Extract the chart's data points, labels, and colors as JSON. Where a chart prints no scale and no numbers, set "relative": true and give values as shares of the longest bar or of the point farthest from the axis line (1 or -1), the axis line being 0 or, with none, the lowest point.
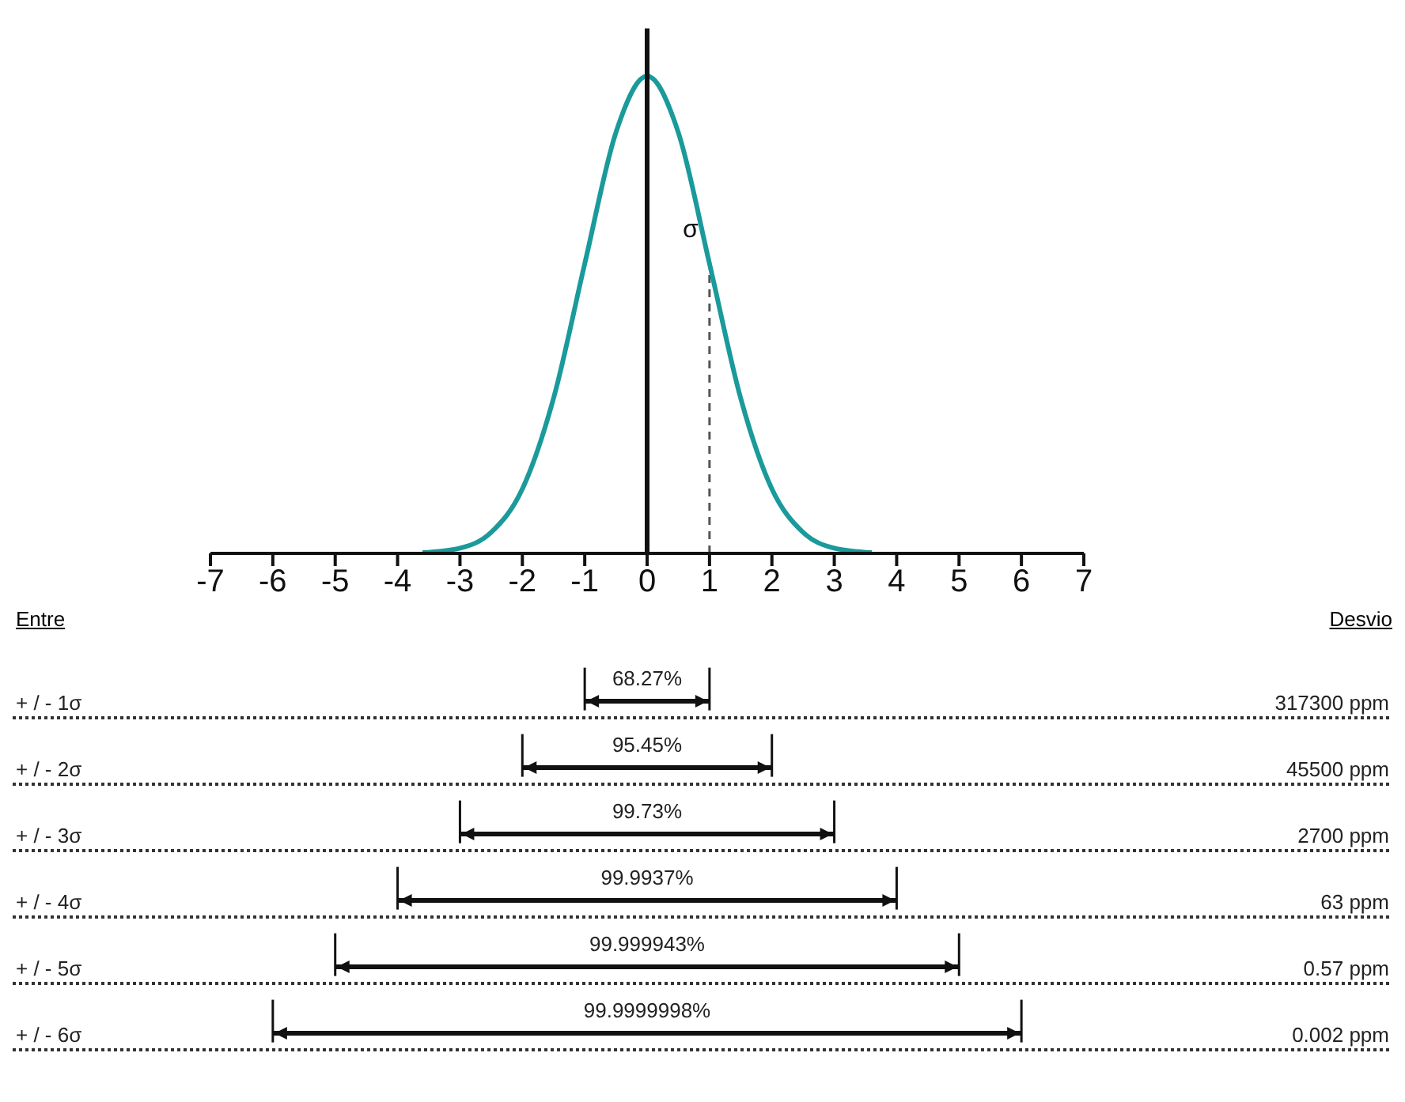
{
  "chart_data": [
    {
      "type": "line",
      "relative": true,
      "x": [
        -3.6,
        -3,
        -2.5,
        -2,
        -1.5,
        -1,
        -0.5,
        0,
        0.5,
        1,
        1.5,
        2,
        2.5,
        3,
        3.6
      ],
      "series": [
        {
          "color": "#1a9a9a",
          "values": [
            0.0015,
            0.011,
            0.044,
            0.135,
            0.325,
            0.607,
            0.882,
            1,
            0.882,
            0.607,
            0.325,
            0.135,
            0.044,
            0.011,
            0.0015
          ]
        }
      ],
      "xlim": [
        -7,
        7
      ],
      "xticks": [
        -7,
        -6,
        -5,
        -4,
        -3,
        -2,
        -1,
        0,
        1,
        2,
        3,
        4,
        5,
        6,
        7
      ],
      "marker": "none",
      "ref_lines": [
        {
          "axis": "x",
          "value": 1,
          "label": "σ",
          "line_style": "dashed"
        }
      ]
    },
    {
      "type": "bar",
      "orientation": "horizontal",
      "categories": [
        "+ / - 1σ",
        "+ / - 2σ",
        "+ / - 3σ",
        "+ / - 4σ",
        "+ / - 5σ",
        "+ / - 6σ"
      ],
      "base": [
        -1,
        -2,
        -3,
        -4,
        -5,
        -6
      ],
      "values": [
        2,
        4,
        6,
        8,
        10,
        12
      ],
      "color": "#111111",
      "xlim": [
        -7,
        7
      ],
      "tick_labels": "y",
      "annotations": [
        "Entre",
        "Desvio",
        "317300 ppm",
        "45500 ppm",
        "2700 ppm",
        "63 ppm",
        "0.57 ppm",
        "0.002 ppm",
        {
          "text": "68.27%",
          "y": "+ / - 1σ"
        },
        {
          "text": "95.45%",
          "y": "+ / - 2σ"
        },
        {
          "text": "99.73%",
          "y": "+ / - 3σ"
        },
        {
          "text": "99.9937%",
          "y": "+ / - 4σ"
        },
        {
          "text": "99.999943%",
          "y": "+ / - 5σ"
        },
        {
          "text": "99.9999998%",
          "y": "+ / - 6σ"
        }
      ]
    }
  ]
}
